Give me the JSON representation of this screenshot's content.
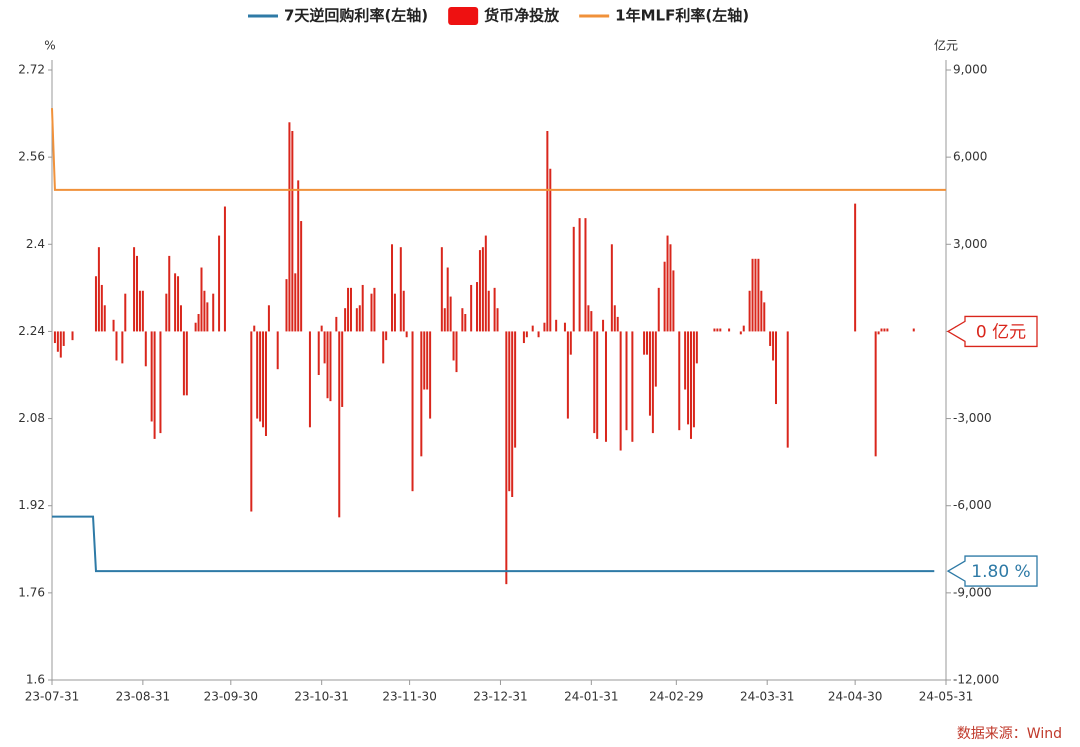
{
  "chart_data": {
    "type": "bar",
    "y_unit": "%",
    "y2_unit": "亿元",
    "source": "数据来源：Wind",
    "xlim": [
      "23-07-31",
      "24-05-31"
    ],
    "xticks": [
      "23-07-31",
      "23-08-31",
      "23-09-30",
      "23-10-31",
      "23-11-30",
      "23-12-31",
      "24-01-31",
      "24-02-29",
      "24-03-31",
      "24-04-30",
      "24-05-31"
    ],
    "ylim": [
      1.6,
      2.72
    ],
    "yticks": [
      1.6,
      1.76,
      1.92,
      2.08,
      2.24,
      2.4,
      2.56,
      2.72
    ],
    "y2lim": [
      -12000,
      9000
    ],
    "y2ticks": [
      {
        "value": -12000,
        "label": "-12,000"
      },
      {
        "value": -9000,
        "label": "-9,000"
      },
      {
        "value": -6000,
        "label": "-6,000"
      },
      {
        "value": -3000,
        "label": "-3,000"
      },
      {
        "value": 0,
        "label": "0"
      },
      {
        "value": 3000,
        "label": "3,000"
      },
      {
        "value": 6000,
        "label": "6,000"
      },
      {
        "value": 9000,
        "label": "9,000"
      }
    ],
    "series": [
      {
        "name": "7天逆回购利率(左轴)",
        "type": "line",
        "color": "#2e7aa6",
        "x": [
          "23-07-31",
          "23-08-14",
          "23-08-15",
          "24-05-27"
        ],
        "values": [
          1.9,
          1.9,
          1.8,
          1.8
        ]
      },
      {
        "name": "货币净投放",
        "type": "bar",
        "axis": "y2",
        "color": "#d9261c",
        "x": [
          "23-08-01",
          "23-08-02",
          "23-08-03",
          "23-08-04",
          "23-08-07",
          "23-08-15",
          "23-08-16",
          "23-08-17",
          "23-08-18",
          "23-08-21",
          "23-08-22",
          "23-08-24",
          "23-08-25",
          "23-08-28",
          "23-08-29",
          "23-08-30",
          "23-08-31",
          "23-09-01",
          "23-09-03",
          "23-09-04",
          "23-09-06",
          "23-09-08",
          "23-09-09",
          "23-09-11",
          "23-09-12",
          "23-09-13",
          "23-09-14",
          "23-09-15",
          "23-09-18",
          "23-09-19",
          "23-09-20",
          "23-09-21",
          "23-09-22",
          "23-09-24",
          "23-09-26",
          "23-09-28",
          "23-10-07",
          "23-10-08",
          "23-10-09",
          "23-10-10",
          "23-10-11",
          "23-10-12",
          "23-10-13",
          "23-10-16",
          "23-10-19",
          "23-10-20",
          "23-10-21",
          "23-10-22",
          "23-10-23",
          "23-10-24",
          "23-10-27",
          "23-10-30",
          "23-10-31",
          "23-11-01",
          "23-11-02",
          "23-11-03",
          "23-11-05",
          "23-11-06",
          "23-11-07",
          "23-11-08",
          "23-11-09",
          "23-11-10",
          "23-11-12",
          "23-11-13",
          "23-11-14",
          "23-11-17",
          "23-11-18",
          "23-11-21",
          "23-11-22",
          "23-11-24",
          "23-11-25",
          "23-11-27",
          "23-11-28",
          "23-11-29",
          "23-12-01",
          "23-12-04",
          "23-12-05",
          "23-12-06",
          "23-12-07",
          "23-12-11",
          "23-12-12",
          "23-12-13",
          "23-12-14",
          "23-12-15",
          "23-12-16",
          "23-12-18",
          "23-12-19",
          "23-12-21",
          "23-12-23",
          "23-12-24",
          "23-12-25",
          "23-12-26",
          "23-12-27",
          "23-12-29",
          "23-12-30",
          "24-01-02",
          "24-01-03",
          "24-01-04",
          "24-01-05",
          "24-01-08",
          "24-01-09",
          "24-01-11",
          "24-01-13",
          "24-01-15",
          "24-01-16",
          "24-01-17",
          "24-01-19",
          "24-01-22",
          "24-01-23",
          "24-01-24",
          "24-01-25",
          "24-01-27",
          "24-01-29",
          "24-01-30",
          "24-01-31",
          "24-02-01",
          "24-02-02",
          "24-02-04",
          "24-02-05",
          "24-02-07",
          "24-02-08",
          "24-02-09",
          "24-02-10",
          "24-02-12",
          "24-02-14",
          "24-02-18",
          "24-02-19",
          "24-02-20",
          "24-02-21",
          "24-02-22",
          "24-02-23",
          "24-02-25",
          "24-02-26",
          "24-02-27",
          "24-02-28",
          "24-03-01",
          "24-03-03",
          "24-03-04",
          "24-03-05",
          "24-03-06",
          "24-03-07",
          "24-03-13",
          "24-03-14",
          "24-03-15",
          "24-03-18",
          "24-03-22",
          "24-03-23",
          "24-03-25",
          "24-03-26",
          "24-03-27",
          "24-03-28",
          "24-03-29",
          "24-03-30",
          "24-04-01",
          "24-04-02",
          "24-04-03",
          "24-04-07",
          "24-04-30",
          "24-05-07",
          "24-05-08",
          "24-05-09",
          "24-05-10",
          "24-05-11",
          "24-05-20"
        ],
        "values": [
          -400,
          -700,
          -900,
          -500,
          -300,
          1900,
          2900,
          1600,
          900,
          400,
          -1000,
          -1100,
          1300,
          2900,
          2600,
          1400,
          1400,
          -1200,
          -3100,
          -3700,
          -3500,
          1300,
          2600,
          2000,
          1900,
          900,
          -2200,
          -2200,
          300,
          600,
          2200,
          1400,
          1000,
          1300,
          3300,
          4300,
          -6200,
          200,
          -3000,
          -3100,
          -3300,
          -3600,
          900,
          -1300,
          1800,
          7200,
          6900,
          2000,
          5200,
          3800,
          -3300,
          -1500,
          200,
          -1100,
          -2300,
          -2400,
          500,
          -6400,
          -2600,
          800,
          1500,
          1500,
          800,
          900,
          1600,
          1300,
          1500,
          -1100,
          -300,
          3000,
          1300,
          2900,
          1400,
          -200,
          -5500,
          -4300,
          -2000,
          -2000,
          -3000,
          2900,
          800,
          2200,
          1200,
          -1000,
          -1400,
          800,
          600,
          1600,
          1700,
          2800,
          2900,
          3300,
          1400,
          1500,
          800,
          -8700,
          -5500,
          -5700,
          -4000,
          -400,
          -200,
          200,
          -200,
          300,
          6900,
          5600,
          400,
          300,
          -3000,
          -800,
          3600,
          3900,
          3900,
          900,
          700,
          -3500,
          -3700,
          400,
          -3800,
          3000,
          900,
          500,
          -4100,
          -3400,
          -3800,
          -800,
          -800,
          -2900,
          -3500,
          -1900,
          1500,
          2400,
          3300,
          3000,
          2100,
          -3400,
          -2000,
          -3200,
          -3700,
          -3300,
          -1100,
          100,
          100,
          100,
          100,
          -100,
          200,
          1400,
          2500,
          2500,
          2500,
          1400,
          1000,
          -500,
          -1000,
          -2500,
          -4000,
          4400,
          -4300,
          -100,
          100,
          100,
          100,
          100
        ]
      },
      {
        "name": "1年MLF利率(左轴)",
        "type": "line",
        "color": "#f0913a",
        "x": [
          "23-07-31",
          "23-08-01",
          "24-05-31"
        ],
        "values": [
          2.65,
          2.5,
          2.5
        ]
      }
    ],
    "annotations": [
      {
        "text": "0 亿元",
        "value": 0,
        "axis": "y2",
        "color": "#d9261c"
      },
      {
        "text": "1.80 %",
        "value": 1.8,
        "axis": "y",
        "color": "#2e7aa6"
      }
    ]
  }
}
